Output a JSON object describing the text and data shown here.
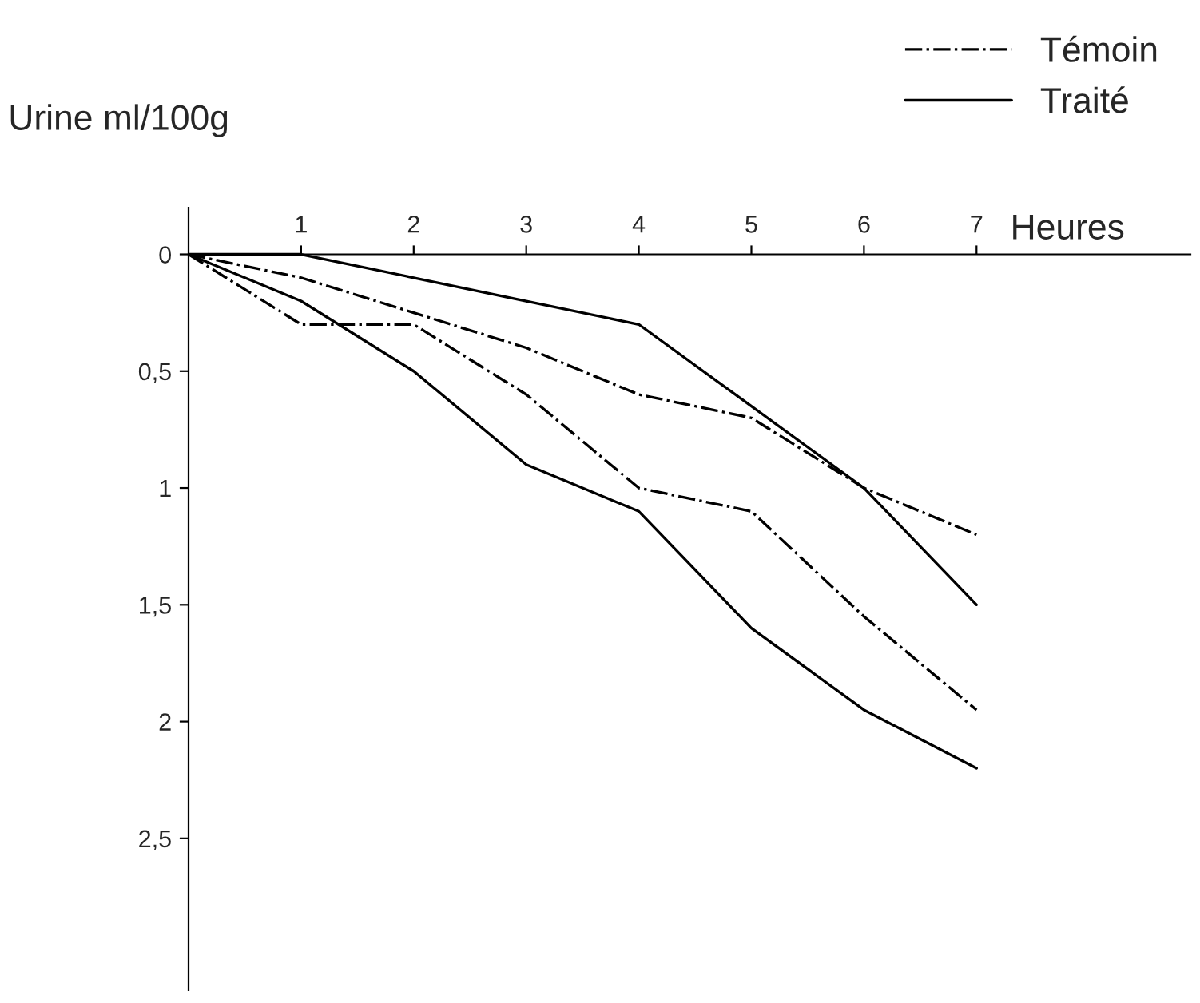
{
  "chart_data": {
    "type": "line",
    "xlabel": "Heures",
    "ylabel": "Urine ml/100g",
    "x": [
      0,
      1,
      2,
      3,
      4,
      5,
      6,
      7
    ],
    "series": [
      {
        "name": "Témoin",
        "color": "#000000",
        "line_style": "dashdot",
        "values": [
          0,
          0.1,
          0.25,
          0.4,
          0.6,
          0.7,
          1.0,
          1.2
        ]
      },
      {
        "color": "#000000",
        "line_style": "dashdot",
        "values": [
          0,
          0.3,
          0.3,
          0.6,
          1.0,
          1.1,
          1.55,
          1.95
        ]
      },
      {
        "name": "Traité",
        "color": "#000000",
        "line_style": "solid",
        "values": [
          0,
          0,
          0.1,
          0.2,
          0.3,
          0.65,
          1.0,
          1.5
        ]
      },
      {
        "color": "#000000",
        "line_style": "solid",
        "values": [
          0,
          0.2,
          0.5,
          0.9,
          1.1,
          1.6,
          1.95,
          2.2
        ]
      }
    ],
    "xlim": [
      0,
      8.9
    ],
    "ylim": [
      3.15,
      -0.2
    ],
    "xticks": [
      1,
      2,
      3,
      4,
      5,
      6,
      7
    ],
    "yticks": [
      0,
      {
        "value": 0.5,
        "label": "0,5"
      },
      1,
      {
        "value": 1.5,
        "label": "1,5"
      },
      2,
      {
        "value": 2.5,
        "label": "2,5"
      }
    ],
    "grid": false,
    "legend": "top right",
    "marker": "none"
  }
}
